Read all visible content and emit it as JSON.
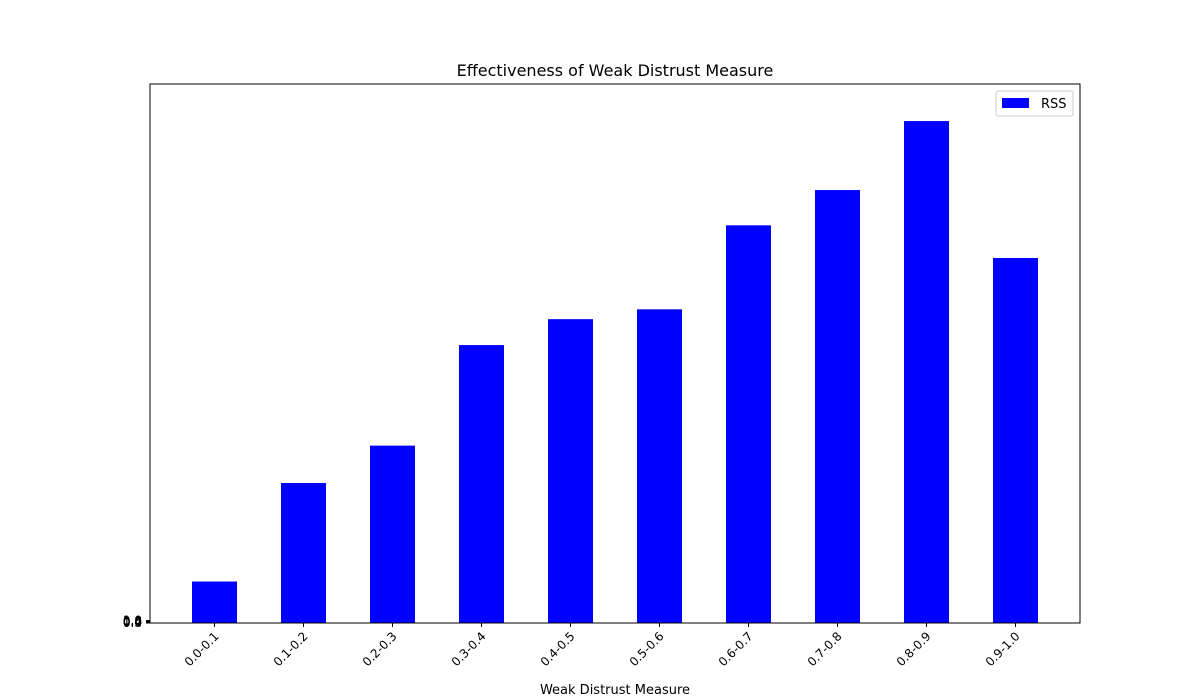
{
  "chart_data": {
    "type": "bar",
    "title": "Effectiveness of Weak Distrust Measure",
    "xlabel": "Weak Distrust Measure",
    "ylabel": "",
    "categories": [
      "0.0-0.1",
      "0.1-0.2",
      "0.2-0.3",
      "0.3-0.4",
      "0.4-0.5",
      "0.5-0.6",
      "0.6-0.7",
      "0.7-0.8",
      "0.8-0.9",
      "0.9-1.0"
    ],
    "series": [
      {
        "name": "RSS",
        "color": "#0000ff",
        "values": [
          0.0808,
          0.2727,
          0.3455,
          0.5414,
          0.5919,
          0.6111,
          0.7747,
          0.8434,
          0.9778,
          0.7111
        ]
      }
    ],
    "ylim": [
      0,
      1.05
    ],
    "y_tick_labels": [
      "0.0",
      "0.2",
      "0.4",
      "0.6",
      "0.8",
      "1.0"
    ],
    "grid": false,
    "legend": {
      "position": "top-right"
    }
  }
}
